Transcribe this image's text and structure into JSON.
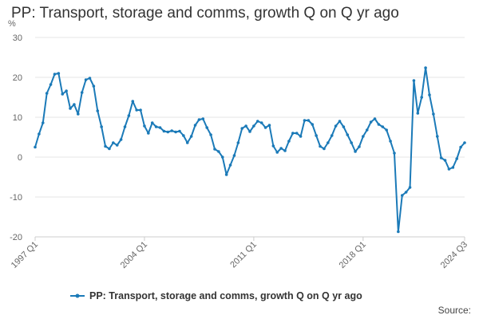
{
  "title": "PP: Transport, storage and comms, growth Q on Q yr ago",
  "legend_label": "PP: Transport, storage and comms, growth Q on Q yr ago",
  "source_label": "Source:",
  "colors": {
    "series": "#1b7ab8",
    "grid": "#e6e6e6",
    "axis": "#cccccc"
  },
  "chart_data": {
    "type": "line",
    "unit_label": "%",
    "ylim": [
      -20,
      30
    ],
    "yticks": [
      -20,
      -10,
      0,
      10,
      20,
      30
    ],
    "x_tick_labels": [
      "1997 Q1",
      "2004 Q1",
      "2011 Q1",
      "2018 Q1",
      "2024 Q3"
    ],
    "x_start": "1997 Q1",
    "x_end": "2024 Q3",
    "grid": true,
    "legend_position": "bottom",
    "series": [
      {
        "name": "PP: Transport, storage and comms, growth Q on Q yr ago",
        "values": [
          2.5,
          5.8,
          8.6,
          16.0,
          18.2,
          20.8,
          21.0,
          15.8,
          16.6,
          12.2,
          13.2,
          10.8,
          16.2,
          19.4,
          19.8,
          17.8,
          11.6,
          7.6,
          2.7,
          2.1,
          3.6,
          3.0,
          4.4,
          7.6,
          10.4,
          14.0,
          11.8,
          11.8,
          7.8,
          6.0,
          8.6,
          7.6,
          7.4,
          6.5,
          6.3,
          6.6,
          6.3,
          6.5,
          5.4,
          3.6,
          5.2,
          8.0,
          9.4,
          9.6,
          7.4,
          5.6,
          2.0,
          1.4,
          0.0,
          -4.4,
          -2.0,
          0.4,
          3.6,
          7.2,
          7.8,
          6.4,
          7.8,
          9.0,
          8.6,
          7.4,
          8.0,
          2.8,
          1.2,
          2.2,
          1.6,
          4.0,
          6.0,
          6.0,
          5.2,
          9.2,
          9.2,
          8.2,
          5.4,
          2.7,
          2.1,
          3.6,
          5.4,
          7.8,
          9.0,
          7.6,
          5.6,
          3.6,
          1.4,
          2.6,
          5.2,
          6.8,
          8.8,
          9.6,
          8.2,
          7.6,
          6.8,
          4.0,
          1.0,
          -18.7,
          -9.6,
          -8.8,
          -7.6,
          19.2,
          11.0,
          15.0,
          22.4,
          15.6,
          10.8,
          5.2,
          -0.2,
          -0.8,
          -3.0,
          -2.6,
          -0.4,
          2.5,
          3.6
        ]
      }
    ]
  }
}
